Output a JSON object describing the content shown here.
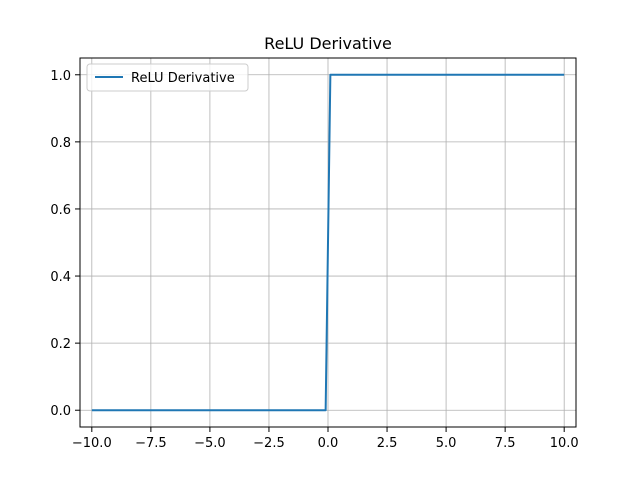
{
  "chart_data": {
    "type": "line",
    "title": "ReLU Derivative",
    "xlabel": "",
    "ylabel": "",
    "xlim": [
      -10.5,
      10.5
    ],
    "ylim": [
      -0.05,
      1.05
    ],
    "xticks": [
      -10.0,
      -7.5,
      -5.0,
      -2.5,
      0.0,
      2.5,
      5.0,
      7.5,
      10.0
    ],
    "xtick_labels": [
      "−10.0",
      "−7.5",
      "−5.0",
      "−2.5",
      "0.0",
      "2.5",
      "5.0",
      "7.5",
      "10.0"
    ],
    "yticks": [
      0.0,
      0.2,
      0.4,
      0.6,
      0.8,
      1.0
    ],
    "ytick_labels": [
      "0.0",
      "0.2",
      "0.4",
      "0.6",
      "0.8",
      "1.0"
    ],
    "grid": true,
    "legend": {
      "placement": "top-left"
    },
    "series": [
      {
        "name": "ReLU Derivative",
        "color": "#1f77b4",
        "x": [
          -10.0,
          -0.1,
          0.1,
          10.0
        ],
        "y": [
          0.0,
          0.0,
          1.0,
          1.0
        ]
      }
    ]
  }
}
